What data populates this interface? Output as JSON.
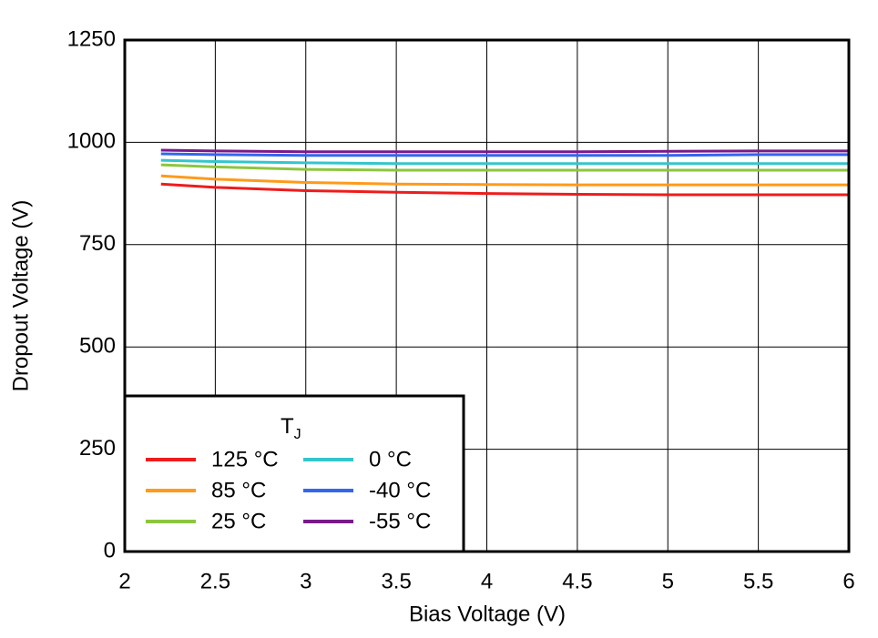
{
  "chart_data": {
    "type": "line",
    "xlabel": "Bias Voltage (V)",
    "ylabel": "Dropout Voltage (V)",
    "legend_title": "T",
    "legend_title_sub": "J",
    "x": [
      2.2,
      2.5,
      3,
      3.5,
      4,
      4.5,
      5,
      5.5,
      6
    ],
    "series": [
      {
        "name": "125 °C",
        "color": "#ee1c1c",
        "values": [
          898,
          890,
          882,
          878,
          875,
          873,
          872,
          872,
          872
        ]
      },
      {
        "name": "85 °C",
        "color": "#ff9a1a",
        "values": [
          918,
          910,
          902,
          898,
          897,
          896,
          896,
          896,
          896
        ]
      },
      {
        "name": "25 °C",
        "color": "#8cc63f",
        "values": [
          945,
          940,
          934,
          932,
          932,
          932,
          932,
          932,
          932
        ]
      },
      {
        "name": "0 °C",
        "color": "#33c6cc",
        "values": [
          956,
          953,
          950,
          948,
          948,
          948,
          948,
          948,
          948
        ]
      },
      {
        "name": "-40 °C",
        "color": "#3366ee",
        "values": [
          972,
          970,
          968,
          968,
          968,
          968,
          968,
          970,
          970
        ]
      },
      {
        "name": "-55 °C",
        "color": "#7a1a8a",
        "values": [
          981,
          979,
          977,
          977,
          977,
          977,
          978,
          979,
          979
        ]
      }
    ],
    "xlim": [
      2,
      6
    ],
    "xticks": [
      2,
      2.5,
      3,
      3.5,
      4,
      4.5,
      5,
      5.5,
      6
    ],
    "ylim": [
      0,
      1250
    ],
    "yticks": [
      0,
      250,
      500,
      750,
      1000,
      1250
    ],
    "grid": true,
    "legend_position": "lower left"
  }
}
